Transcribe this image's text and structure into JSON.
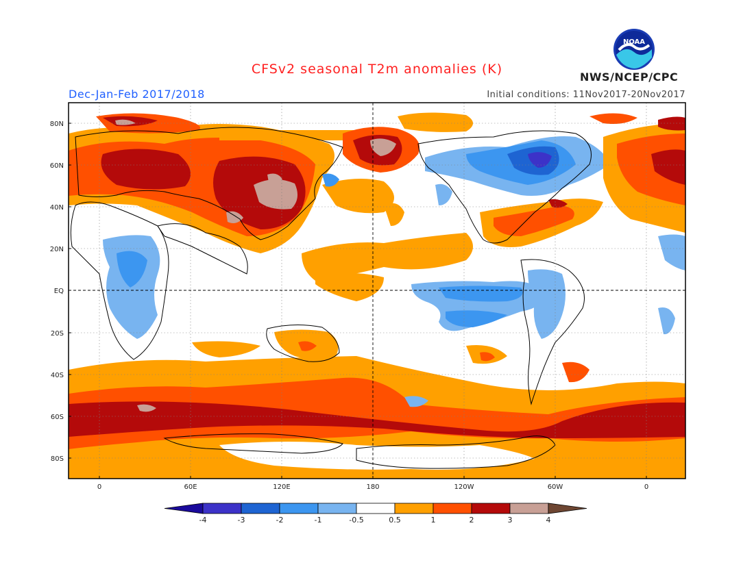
{
  "header": {
    "title": "CFSv2 seasonal T2m anomalies (K)",
    "period": "Dec-Jan-Feb 2017/2018",
    "initial_conditions": "Initial conditions: 11Nov2017-20Nov2017",
    "agency": "NWS/NCEP/CPC",
    "logo_text": "NOAA"
  },
  "axes": {
    "lat_labels": [
      "80N",
      "60N",
      "40N",
      "20N",
      "EQ",
      "20S",
      "40S",
      "60S",
      "80S"
    ],
    "lon_labels": [
      "0",
      "60E",
      "120E",
      "180",
      "120W",
      "60W",
      "0"
    ]
  },
  "colorbar": {
    "labels": [
      "-4",
      "-3",
      "-2",
      "-1",
      "-0.5",
      "0.5",
      "1",
      "2",
      "3",
      "4"
    ],
    "colors": [
      "#1a0a9c",
      "#3c32c8",
      "#1e64d2",
      "#3c96f0",
      "#78b4f0",
      "#ffffff",
      "#ffa000",
      "#ff5000",
      "#b40a0a",
      "#c8a096",
      "#6e4632"
    ]
  },
  "legend_unit": "K"
}
